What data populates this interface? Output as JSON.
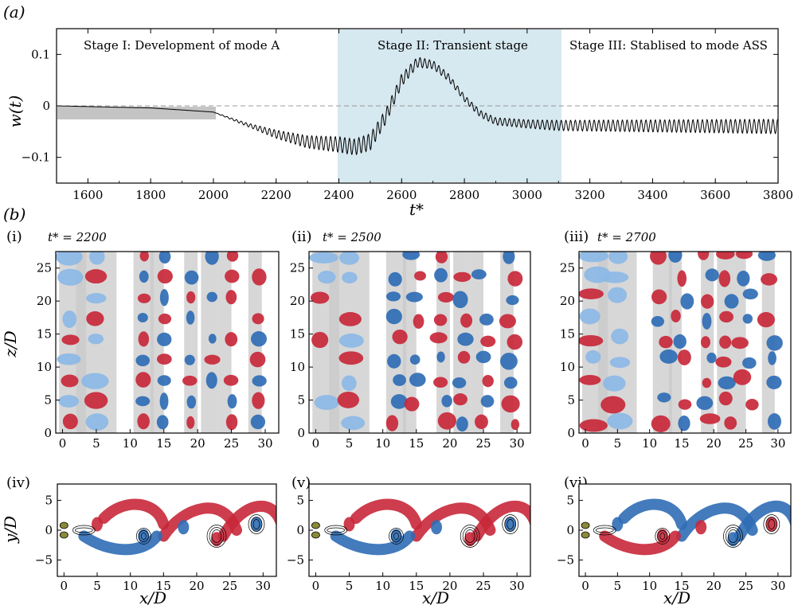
{
  "top_panel": {
    "label": "(a)",
    "y_axis_label": "w(t)",
    "x_axis_label": "t*",
    "x_ticks": [
      "1600",
      "1800",
      "2000",
      "2200",
      "2400",
      "2600",
      "2800",
      "3000",
      "3200",
      "3400",
      "3600",
      "3800"
    ],
    "y_ticks": [
      "0.1",
      "0",
      "−0.1"
    ],
    "stage_labels": [
      "Stage I: Development of mode A",
      "Stage II: Transient stage",
      "Stage III: Stablised to mode ASS"
    ],
    "colors": {
      "highlight": "#d6e8f0",
      "grey_bar": "#c4c4c4",
      "signal": "#000000"
    }
  },
  "chart_data": {
    "type": "line",
    "xlabel": "t*",
    "ylabel": "w(t)",
    "xlim": [
      1500,
      3800
    ],
    "ylim": [
      -0.15,
      0.15
    ],
    "series": [
      {
        "values": [
          [
            1500,
            0.0
          ],
          [
            1800,
            -0.004
          ],
          [
            2000,
            -0.012
          ],
          [
            2100,
            -0.035
          ],
          [
            2200,
            -0.055
          ],
          [
            2300,
            -0.07
          ],
          [
            2400,
            -0.075
          ],
          [
            2450,
            -0.08
          ],
          [
            2500,
            -0.07
          ],
          [
            2550,
            -0.02
          ],
          [
            2600,
            0.05
          ],
          [
            2650,
            0.085
          ],
          [
            2700,
            0.08
          ],
          [
            2750,
            0.055
          ],
          [
            2800,
            0.015
          ],
          [
            2850,
            -0.015
          ],
          [
            2900,
            -0.03
          ],
          [
            3000,
            -0.035
          ],
          [
            3100,
            -0.038
          ],
          [
            3800,
            -0.04
          ]
        ]
      }
    ],
    "oscillation_amplitude_envelope": [
      [
        1500,
        0.0
      ],
      [
        2000,
        0.0
      ],
      [
        2100,
        0.003
      ],
      [
        2200,
        0.008
      ],
      [
        2300,
        0.012
      ],
      [
        2400,
        0.015
      ],
      [
        2500,
        0.016
      ],
      [
        2600,
        0.012
      ],
      [
        2700,
        0.008
      ],
      [
        2800,
        0.006
      ],
      [
        3000,
        0.008
      ],
      [
        3100,
        0.01
      ],
      [
        3800,
        0.014
      ]
    ],
    "annotations": [
      "Stage I: Development of mode A",
      "Stage II: Transient stage",
      "Stage III: Stablised to mode ASS"
    ],
    "grid": false
  },
  "panel_b": {
    "label": "(b)",
    "top_row": [
      {
        "tag": "(i)",
        "time_label": "t* = 2200"
      },
      {
        "tag": "(ii)",
        "time_label": "t* = 2500"
      },
      {
        "tag": "(iii)",
        "time_label": "t* = 2700"
      }
    ],
    "bottom_row": [
      {
        "tag": "(iv)"
      },
      {
        "tag": "(v)"
      },
      {
        "tag": "(vi)"
      }
    ],
    "z_axis_label": "z/D",
    "y_axis_label": "y/D",
    "x_axis_label": "x/D",
    "z_ticks": [
      "25",
      "20",
      "15",
      "10",
      "5",
      "0"
    ],
    "y_ticks": [
      "5",
      "0",
      "−5"
    ],
    "x_ticks": [
      "0",
      "5",
      "10",
      "15",
      "20",
      "25",
      "30"
    ],
    "colors": {
      "red": "#c8283a",
      "blue": "#2f6db5",
      "lightblue": "#8cb9e6",
      "grey": "#c9c9c9",
      "olive": "#8a8a3a"
    }
  }
}
